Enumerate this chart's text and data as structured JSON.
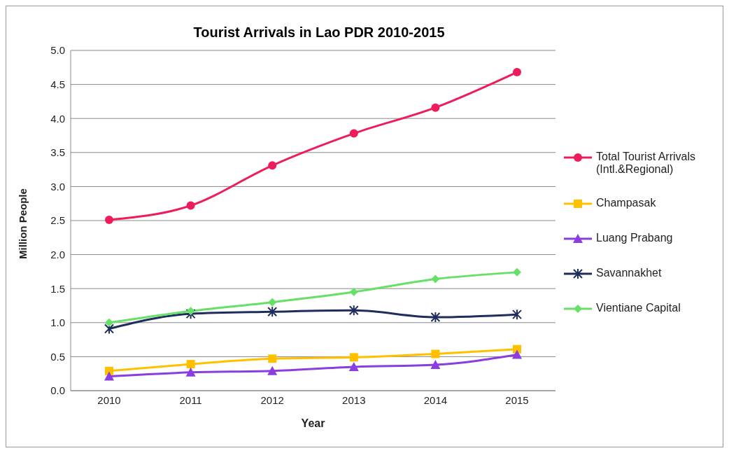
{
  "chart_data": {
    "type": "line",
    "title": "Tourist Arrivals in Lao PDR 2010-2015",
    "xlabel": "Year",
    "ylabel": "Million People",
    "categories": [
      "2010",
      "2011",
      "2012",
      "2013",
      "2014",
      "2015"
    ],
    "series": [
      {
        "name": "Total Tourist Arrivals (Intl.&Regional)",
        "color": "#ee1c5a",
        "marker": "circle",
        "values": [
          2.51,
          2.72,
          3.31,
          3.78,
          4.16,
          4.68
        ]
      },
      {
        "name": "Champasak",
        "color": "#ffc000",
        "marker": "square",
        "values": [
          0.29,
          0.39,
          0.47,
          0.49,
          0.54,
          0.61
        ]
      },
      {
        "name": "Luang Prabang",
        "color": "#8a3ee0",
        "marker": "triangle",
        "values": [
          0.21,
          0.27,
          0.29,
          0.35,
          0.38,
          0.53
        ]
      },
      {
        "name": "Savannakhet",
        "color": "#1f2d5c",
        "marker": "cross",
        "values": [
          0.91,
          1.13,
          1.16,
          1.18,
          1.08,
          1.12
        ]
      },
      {
        "name": "Vientiane Capital",
        "color": "#66e066",
        "marker": "diamond",
        "values": [
          1.0,
          1.17,
          1.3,
          1.45,
          1.64,
          1.74
        ]
      }
    ],
    "ylim": [
      0,
      5
    ],
    "yticks": [
      {
        "value": 0,
        "label": "0.0"
      },
      {
        "value": 0.5,
        "label": "0.5"
      },
      {
        "value": 1,
        "label": "1.0"
      },
      {
        "value": 1.5,
        "label": "1.5"
      },
      {
        "value": 2,
        "label": "2.0"
      },
      {
        "value": 2.5,
        "label": "2.5"
      },
      {
        "value": 3,
        "label": "3.0"
      },
      {
        "value": 3.5,
        "label": "3.5"
      },
      {
        "value": 4,
        "label": "4.0"
      },
      {
        "value": 4.5,
        "label": "4.5"
      },
      {
        "value": 5,
        "label": "5.0"
      }
    ],
    "grid": "y",
    "legend": "right",
    "line_style": "solid"
  }
}
